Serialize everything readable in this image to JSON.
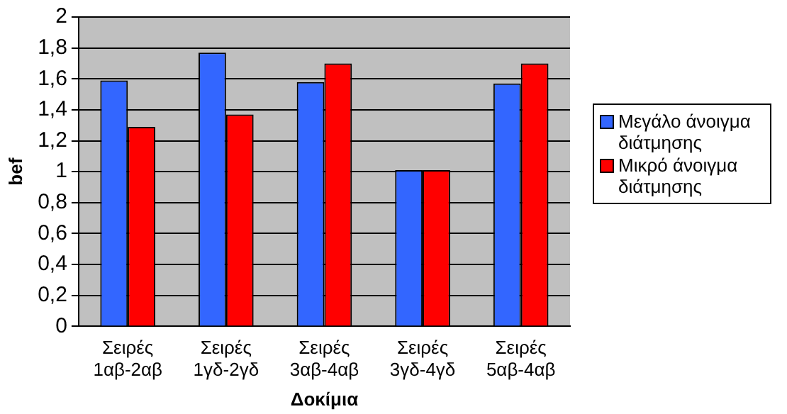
{
  "chart_data": {
    "type": "bar",
    "xlabel": "Δοκίμια",
    "ylabel": "bef",
    "categories": [
      "Σειρές 1αβ-2αβ",
      "Σειρές 1γδ-2γδ",
      "Σειρές 3αβ-4αβ",
      "Σειρές 3γδ-4γδ",
      "Σειρές 5αβ-4αβ"
    ],
    "series": [
      {
        "name": "Μεγάλο άνοιγμα διάτμησης",
        "color": "#3366ff",
        "values": [
          1.59,
          1.77,
          1.58,
          1.01,
          1.57
        ]
      },
      {
        "name": "Μικρό άνοιγμα διάτμησης",
        "color": "#ff0000",
        "values": [
          1.29,
          1.37,
          1.7,
          1.01,
          1.7
        ]
      }
    ],
    "ylim": [
      0,
      2
    ],
    "yticks": [
      0,
      {
        "value": 0.2,
        "label": "0,2"
      },
      {
        "value": 0.4,
        "label": "0,4"
      },
      {
        "value": 0.6,
        "label": "0,6"
      },
      {
        "value": 0.8,
        "label": "0,8"
      },
      1,
      {
        "value": 1.2,
        "label": "1,2"
      },
      {
        "value": 1.4,
        "label": "1,4"
      },
      {
        "value": 1.6,
        "label": "1,6"
      },
      {
        "value": 1.8,
        "label": "1,8"
      },
      2
    ],
    "grid": "y",
    "legend": "right"
  }
}
